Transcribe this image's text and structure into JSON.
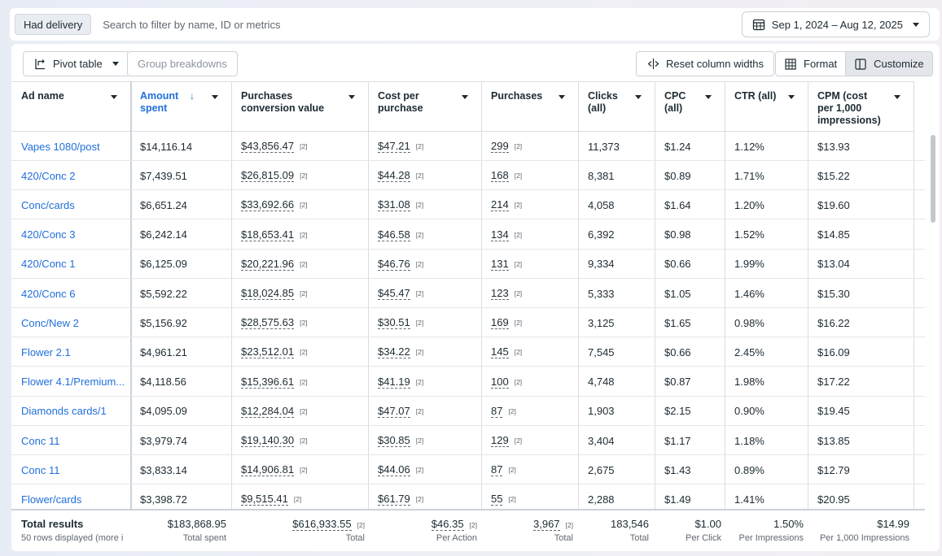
{
  "filter": {
    "chip": "Had delivery",
    "placeholder": "Search to filter by name, ID or metrics"
  },
  "date_range": "Sep 1, 2024 – Aug 12, 2025",
  "toolbar": {
    "pivot": "Pivot table",
    "breakdowns": "Group breakdowns",
    "reset": "Reset column widths",
    "format": "Format",
    "customize": "Customize"
  },
  "columns": [
    {
      "label": "Ad name"
    },
    {
      "label": "Amount spent"
    },
    {
      "label": "Purchases conversion value"
    },
    {
      "label": "Cost per purchase"
    },
    {
      "label": "Purchases"
    },
    {
      "label": "Clicks (all)"
    },
    {
      "label": "CPC (all)"
    },
    {
      "label": "CTR (all)"
    },
    {
      "label": "CPM (cost per 1,000 impressions)"
    }
  ],
  "tag": "[2]",
  "rows": [
    {
      "name": "Vapes 1080/post",
      "spent": "$14,116.14",
      "value": "$43,856.47",
      "cpp": "$47.21",
      "purchases": "299",
      "clicks": "11,373",
      "cpc": "$1.24",
      "ctr": "1.12%",
      "cpm": "$13.93"
    },
    {
      "name": "420/Conc 2",
      "spent": "$7,439.51",
      "value": "$26,815.09",
      "cpp": "$44.28",
      "purchases": "168",
      "clicks": "8,381",
      "cpc": "$0.89",
      "ctr": "1.71%",
      "cpm": "$15.22"
    },
    {
      "name": "Conc/cards",
      "spent": "$6,651.24",
      "value": "$33,692.66",
      "cpp": "$31.08",
      "purchases": "214",
      "clicks": "4,058",
      "cpc": "$1.64",
      "ctr": "1.20%",
      "cpm": "$19.60"
    },
    {
      "name": "420/Conc 3",
      "spent": "$6,242.14",
      "value": "$18,653.41",
      "cpp": "$46.58",
      "purchases": "134",
      "clicks": "6,392",
      "cpc": "$0.98",
      "ctr": "1.52%",
      "cpm": "$14.85"
    },
    {
      "name": "420/Conc 1",
      "spent": "$6,125.09",
      "value": "$20,221.96",
      "cpp": "$46.76",
      "purchases": "131",
      "clicks": "9,334",
      "cpc": "$0.66",
      "ctr": "1.99%",
      "cpm": "$13.04"
    },
    {
      "name": "420/Conc 6",
      "spent": "$5,592.22",
      "value": "$18,024.85",
      "cpp": "$45.47",
      "purchases": "123",
      "clicks": "5,333",
      "cpc": "$1.05",
      "ctr": "1.46%",
      "cpm": "$15.30"
    },
    {
      "name": "Conc/New 2",
      "spent": "$5,156.92",
      "value": "$28,575.63",
      "cpp": "$30.51",
      "purchases": "169",
      "clicks": "3,125",
      "cpc": "$1.65",
      "ctr": "0.98%",
      "cpm": "$16.22"
    },
    {
      "name": "Flower 2.1",
      "spent": "$4,961.21",
      "value": "$23,512.01",
      "cpp": "$34.22",
      "purchases": "145",
      "clicks": "7,545",
      "cpc": "$0.66",
      "ctr": "2.45%",
      "cpm": "$16.09"
    },
    {
      "name": "Flower 4.1/Premium...",
      "spent": "$4,118.56",
      "value": "$15,396.61",
      "cpp": "$41.19",
      "purchases": "100",
      "clicks": "4,748",
      "cpc": "$0.87",
      "ctr": "1.98%",
      "cpm": "$17.22"
    },
    {
      "name": "Diamonds cards/1",
      "spent": "$4,095.09",
      "value": "$12,284.04",
      "cpp": "$47.07",
      "purchases": "87",
      "clicks": "1,903",
      "cpc": "$2.15",
      "ctr": "0.90%",
      "cpm": "$19.45"
    },
    {
      "name": "Conc 11",
      "spent": "$3,979.74",
      "value": "$19,140.30",
      "cpp": "$30.85",
      "purchases": "129",
      "clicks": "3,404",
      "cpc": "$1.17",
      "ctr": "1.18%",
      "cpm": "$13.85"
    },
    {
      "name": "Conc 11",
      "spent": "$3,833.14",
      "value": "$14,906.81",
      "cpp": "$44.06",
      "purchases": "87",
      "clicks": "2,675",
      "cpc": "$1.43",
      "ctr": "0.89%",
      "cpm": "$12.79"
    },
    {
      "name": "Flower/cards",
      "spent": "$3,398.72",
      "value": "$9,515.41",
      "cpp": "$61.79",
      "purchases": "55",
      "clicks": "2,288",
      "cpc": "$1.49",
      "ctr": "1.41%",
      "cpm": "$20.95"
    }
  ],
  "totals": {
    "label": "Total results",
    "sub": "50 rows displayed (more i",
    "spent": "$183,868.95",
    "spent_sub": "Total spent",
    "value": "$616,933.55",
    "value_sub": "Total",
    "cpp": "$46.35",
    "cpp_sub": "Per Action",
    "purchases": "3,967",
    "purchases_sub": "Total",
    "clicks": "183,546",
    "clicks_sub": "Total",
    "cpc": "$1.00",
    "cpc_sub": "Per Click",
    "ctr": "1.50%",
    "ctr_sub": "Per Impressions",
    "cpm": "$14.99",
    "cpm_sub": "Per 1,000 Impressions"
  },
  "colors": {
    "link": "#216fdb",
    "text": "#1c2b33",
    "muted": "#606770"
  }
}
